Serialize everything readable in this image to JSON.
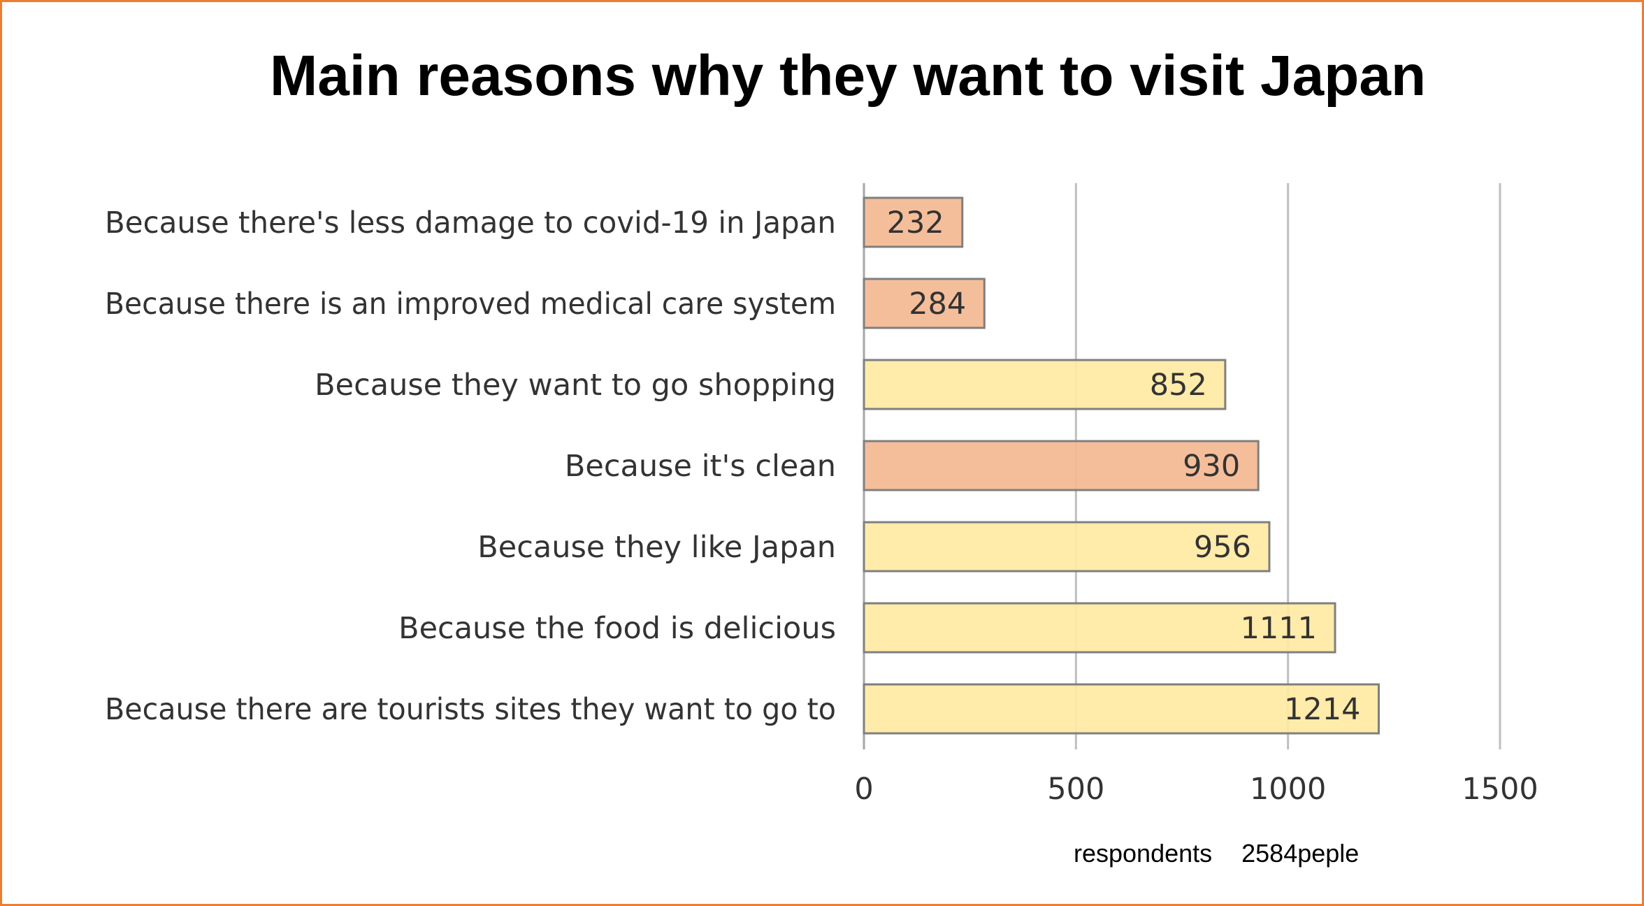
{
  "chart_data": {
    "type": "bar",
    "orientation": "horizontal",
    "title": "Main reasons why they want to visit Japan",
    "categories": [
      "Because there's less damage to covid-19 in Japan",
      "Because there is an improved medical care system",
      "Because they want to go shopping",
      "Because it's clean",
      "Because they like Japan",
      "Because the food is delicious",
      "Because there are tourists sites they want to go to"
    ],
    "values": [
      232,
      284,
      852,
      930,
      956,
      1111,
      1214
    ],
    "bar_colors": [
      "#F4B993",
      "#F4B993",
      "#FFE9A3",
      "#F4B993",
      "#FFE9A3",
      "#FFE9A3",
      "#FFE9A3"
    ],
    "xlim": [
      0,
      1500
    ],
    "xticks": [
      0,
      500,
      1000,
      1500
    ],
    "grid": true,
    "data_labels": true,
    "xlabel": "",
    "ylabel": ""
  },
  "note": {
    "respondents_label": "respondents",
    "respondents_value": "2584peple"
  },
  "colors": {
    "border": "#ED7D31",
    "bar_edge": "#7F7F7F",
    "grid": "#BFBFBF"
  }
}
